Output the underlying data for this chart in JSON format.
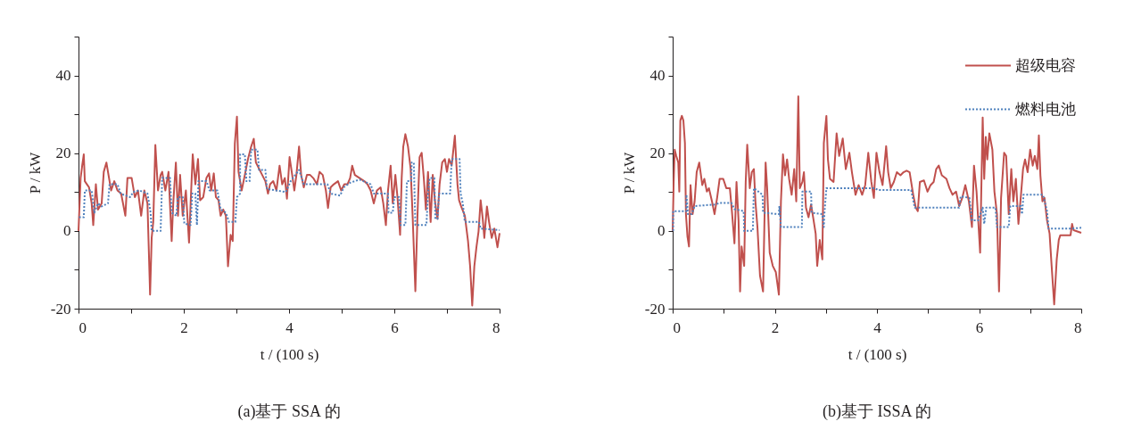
{
  "chart_data": [
    {
      "type": "line",
      "title": "(a)基于 SSA 的",
      "xlabel": "t / (100 s)",
      "ylabel": "P / kW",
      "xlim": [
        0,
        8
      ],
      "xticks": [
        0,
        {
          "value": 1,
          "label": null
        },
        2,
        {
          "value": 3,
          "label": null
        },
        4,
        {
          "value": 5,
          "label": null
        },
        6,
        {
          "value": 7,
          "label": null
        },
        8
      ],
      "ylim": [
        -20,
        50
      ],
      "yticks": [
        -20,
        {
          "value": -10,
          "label": null
        },
        0,
        {
          "value": 10,
          "label": null
        },
        20,
        {
          "value": 30,
          "label": null
        },
        40,
        {
          "value": 50,
          "label": null
        }
      ],
      "grid": false,
      "legend": false,
      "marker": "none",
      "series": [
        {
          "color": "#c0504d",
          "line_style": "solid",
          "x": [
            0,
            0.04,
            0.07,
            0.1,
            0.12,
            0.16,
            0.2,
            0.25,
            0.28,
            0.33,
            0.37,
            0.44,
            0.48,
            0.53,
            0.57,
            0.62,
            0.68,
            0.74,
            0.81,
            0.89,
            0.93,
            1.01,
            1.07,
            1.13,
            1.19,
            1.25,
            1.31,
            1.36,
            1.39,
            1.42,
            1.46,
            1.51,
            1.56,
            1.59,
            1.65,
            1.71,
            1.77,
            1.8,
            1.85,
            1.89,
            1.93,
            1.98,
            2.04,
            2.1,
            2.13,
            2.17,
            2.22,
            2.27,
            2.31,
            2.37,
            2.43,
            2.48,
            2.52,
            2.57,
            2.61,
            2.66,
            2.7,
            2.75,
            2.8,
            2.84,
            2.89,
            2.93,
            2.97,
            3.01,
            3.04,
            3.1,
            3.16,
            3.22,
            3.28,
            3.33,
            3.37,
            3.43,
            3.49,
            3.55,
            3.6,
            3.64,
            3.7,
            3.76,
            3.82,
            3.87,
            3.92,
            3.96,
            4.01,
            4.06,
            4.1,
            4.14,
            4.19,
            4.23,
            4.28,
            4.34,
            4.4,
            4.46,
            4.53,
            4.58,
            4.64,
            4.7,
            4.74,
            4.79,
            4.85,
            4.93,
            4.99,
            5.05,
            5.11,
            5.16,
            5.2,
            5.25,
            5.34,
            5.43,
            5.49,
            5.55,
            5.61,
            5.67,
            5.74,
            5.79,
            5.84,
            5.88,
            5.93,
            5.97,
            6.02,
            6.06,
            6.11,
            6.14,
            6.17,
            6.21,
            6.26,
            6.31,
            6.35,
            6.4,
            6.44,
            6.48,
            6.52,
            6.56,
            6.6,
            6.64,
            6.69,
            6.73,
            6.77,
            6.82,
            6.86,
            6.91,
            6.96,
            7,
            7.04,
            7.09,
            7.15,
            7.2,
            7.23,
            7.27,
            7.34,
            7.4,
            7.44,
            7.48,
            7.52,
            7.56,
            7.6,
            7.64,
            7.68,
            7.71,
            7.76,
            7.8,
            7.85,
            7.9,
            7.96,
            8
          ],
          "values": [
            0,
            13.6,
            16.8,
            19.7,
            12.8,
            12,
            11.2,
            7.1,
            1.5,
            12,
            5.5,
            7.1,
            15.2,
            17.6,
            14.4,
            10.4,
            12.8,
            10.4,
            9.6,
            3.9,
            13.6,
            13.6,
            8.7,
            10.4,
            3.9,
            10.4,
            7.1,
            -16.4,
            -1.8,
            2.3,
            22.1,
            10.4,
            14.4,
            15.2,
            10.4,
            15.2,
            -2.6,
            7.1,
            17.6,
            3.9,
            14.4,
            3.9,
            10.4,
            -3,
            7.1,
            19.7,
            12,
            18.5,
            7.9,
            8.7,
            13.6,
            14.8,
            10.4,
            14.8,
            8.7,
            7.9,
            3.9,
            5.5,
            3.9,
            -9.1,
            -1,
            -2.6,
            22.5,
            29.4,
            15.2,
            10.4,
            14.4,
            18.5,
            21.7,
            23.7,
            17.6,
            16,
            14.4,
            12.8,
            9.6,
            12,
            12.8,
            10.4,
            16.8,
            12,
            13.6,
            8.3,
            19,
            14.4,
            10.4,
            14.4,
            21.7,
            14.4,
            11.2,
            14.4,
            14.4,
            13.6,
            12,
            15.2,
            14.4,
            10.4,
            5.9,
            11.2,
            12,
            12.8,
            10.4,
            12,
            12,
            13.6,
            16.8,
            14.4,
            13.6,
            12.8,
            12,
            10.4,
            7.1,
            10.4,
            11.2,
            7.1,
            1.5,
            10.4,
            16.8,
            7.1,
            14.4,
            8.7,
            -1,
            13.6,
            21.7,
            24.9,
            21.7,
            16,
            3.1,
            -15.5,
            3.9,
            19,
            20.1,
            13.6,
            5.5,
            15.2,
            2.3,
            14.4,
            7.9,
            3.1,
            12,
            17.6,
            18.5,
            15.2,
            18.5,
            16.8,
            24.5,
            12,
            7.9,
            6.3,
            3.9,
            -2.6,
            -9.1,
            -19.2,
            -9.1,
            -4.2,
            -0.2,
            7.9,
            3.1,
            -1.8,
            6.3,
            2.3,
            -1.8,
            0.6,
            -4.2,
            -0.6
          ]
        },
        {
          "color": "#4f81bd",
          "line_style": "dotted",
          "x": [
            0.01,
            0.1,
            0.12,
            0.25,
            0.3,
            0.37,
            0.44,
            0.56,
            0.59,
            0.74,
            0.8,
            0.98,
            1.04,
            1.16,
            1.31,
            1.37,
            1.39,
            1.56,
            1.59,
            1.74,
            1.77,
            1.86,
            1.89,
            1.98,
            2.01,
            2.13,
            2.16,
            2.22,
            2.25,
            2.28,
            2.43,
            2.49,
            2.64,
            2.7,
            2.8,
            2.86,
            2.98,
            3.01,
            3.07,
            3.07,
            3.16,
            3.19,
            3.25,
            3.28,
            3.4,
            3.43,
            3.55,
            3.58,
            3.94,
            4.03,
            4.19,
            4.28,
            4.73,
            4.79,
            4.97,
            5.04,
            5.16,
            5.34,
            5.55,
            5.61,
            5.88,
            5.89,
            5.97,
            6,
            6.09,
            6.12,
            6.21,
            6.24,
            6.32,
            6.33,
            6.37,
            6.4,
            6.61,
            6.64,
            6.67,
            6.76,
            6.78,
            6.82,
            6.85,
            7.06,
            7.09,
            7.24,
            7.26,
            7.3,
            7.34,
            7.61,
            7.64,
            8
          ],
          "values": [
            3.5,
            3.5,
            10.4,
            10.4,
            4.7,
            7.1,
            6.3,
            7.1,
            12,
            12,
            9.6,
            8.7,
            10,
            10.4,
            9.6,
            4.7,
            0,
            0,
            13.6,
            13.6,
            4.7,
            3.9,
            8.7,
            8.7,
            1.9,
            1.5,
            9.6,
            9.6,
            1.5,
            12.8,
            12.8,
            10.4,
            10.4,
            5.5,
            4.7,
            2.3,
            2.3,
            8.7,
            9.6,
            19.7,
            19.7,
            12.8,
            12.8,
            20.9,
            20.9,
            15.7,
            15.7,
            10.8,
            10,
            12.8,
            15.7,
            12,
            12,
            9.6,
            9.1,
            11.2,
            12.4,
            13.2,
            12,
            9.6,
            9.6,
            4.7,
            4.7,
            8.7,
            8.7,
            1.5,
            1.5,
            12.8,
            12.8,
            17.6,
            17.6,
            1.5,
            1.5,
            9.6,
            13.6,
            13.6,
            3.1,
            3.1,
            9.6,
            9.6,
            18.5,
            18.5,
            9.6,
            7.1,
            2.3,
            2.3,
            0.6,
            0.2
          ]
        }
      ]
    },
    {
      "type": "line",
      "title": "(b)基于 ISSA 的",
      "xlabel": "t / (100 s)",
      "ylabel": "P / kW",
      "xlim": [
        0,
        8
      ],
      "xticks": [
        0,
        {
          "value": 1,
          "label": null
        },
        2,
        {
          "value": 3,
          "label": null
        },
        4,
        {
          "value": 5,
          "label": null
        },
        6,
        {
          "value": 7,
          "label": null
        },
        8
      ],
      "ylim": [
        -20,
        50
      ],
      "yticks": [
        -20,
        {
          "value": -10,
          "label": null
        },
        0,
        {
          "value": 10,
          "label": null
        },
        20,
        {
          "value": 30,
          "label": null
        },
        40,
        {
          "value": 50,
          "label": null
        }
      ],
      "grid": false,
      "legend": "top right",
      "marker": "none",
      "series": [
        {
          "name": "超级电容",
          "color": "#c0504d",
          "line_style": "solid",
          "x": [
            0,
            0.02,
            0.04,
            0.07,
            0.11,
            0.13,
            0.15,
            0.18,
            0.21,
            0.24,
            0.26,
            0.29,
            0.32,
            0.35,
            0.39,
            0.43,
            0.47,
            0.52,
            0.58,
            0.62,
            0.67,
            0.71,
            0.77,
            0.82,
            0.87,
            0.92,
            0.99,
            1.05,
            1.12,
            1.16,
            1.21,
            1.25,
            1.29,
            1.32,
            1.35,
            1.4,
            1.43,
            1.46,
            1.51,
            1.55,
            1.59,
            1.62,
            1.66,
            1.71,
            1.77,
            1.82,
            1.85,
            1.9,
            1.96,
            2.02,
            2.08,
            2.12,
            2.16,
            2.2,
            2.24,
            2.28,
            2.33,
            2.38,
            2.42,
            2.46,
            2.49,
            2.54,
            2.57,
            2.61,
            2.66,
            2.71,
            2.76,
            2.8,
            2.83,
            2.88,
            2.93,
            2.96,
            3.01,
            3.04,
            3.08,
            3.15,
            3.21,
            3.26,
            3.33,
            3.39,
            3.46,
            3.51,
            3.58,
            3.64,
            3.71,
            3.77,
            3.83,
            3.89,
            3.94,
            3.99,
            4.05,
            4.11,
            4.18,
            4.22,
            4.27,
            4.33,
            4.39,
            4.46,
            4.52,
            4.58,
            4.64,
            4.71,
            4.76,
            4.8,
            4.84,
            4.92,
            4.99,
            5.05,
            5.11,
            5.16,
            5.21,
            5.27,
            5.36,
            5.42,
            5.48,
            5.55,
            5.61,
            5.67,
            5.73,
            5.8,
            5.86,
            5.9,
            5.95,
            6.02,
            6.07,
            6.1,
            6.13,
            6.16,
            6.2,
            6.26,
            6.3,
            6.35,
            6.39,
            6.43,
            6.49,
            6.53,
            6.58,
            6.63,
            6.67,
            6.72,
            6.77,
            6.82,
            6.86,
            6.9,
            6.95,
            7,
            7.05,
            7.09,
            7.14,
            7.17,
            7.2,
            7.24,
            7.28,
            7.33,
            7.38,
            7.42,
            7.47,
            7.52,
            7.56,
            7.59,
            7.79,
            7.82,
            7.85,
            8
          ],
          "values": [
            0,
            12.6,
            20.9,
            19.3,
            17.6,
            10.1,
            28.4,
            29.6,
            28.4,
            22.6,
            4.3,
            -1.5,
            -4,
            11.8,
            4.3,
            7.6,
            15.1,
            17.6,
            11.8,
            13.4,
            10.1,
            11,
            7.6,
            4.3,
            8.5,
            13.4,
            13.4,
            11,
            11,
            5.1,
            -3.2,
            12.6,
            2.7,
            -15.6,
            -4,
            -9,
            12.6,
            22.2,
            11,
            15.1,
            15.9,
            7.6,
            1,
            -11.5,
            -15.6,
            17.6,
            11,
            -5.6,
            -9,
            -10.6,
            -16.4,
            7.6,
            19.7,
            14.3,
            18.4,
            13.4,
            9.3,
            15.9,
            7.6,
            34.6,
            11,
            12.6,
            15.1,
            6,
            3.5,
            6.8,
            2.7,
            -0.7,
            -9,
            -2.3,
            -7.3,
            22.6,
            29.6,
            18.4,
            13.4,
            12.6,
            25.1,
            19.3,
            23.8,
            15.9,
            20.1,
            15.1,
            9.3,
            11.8,
            9.3,
            11.8,
            20.1,
            12.6,
            8.5,
            20.1,
            15.1,
            11.8,
            21.8,
            15.1,
            11,
            12.6,
            15.1,
            14.3,
            15.1,
            15.5,
            15.1,
            9.3,
            6,
            5.1,
            12.6,
            13,
            10.1,
            11.8,
            12.6,
            15.9,
            16.8,
            14.3,
            13.4,
            11,
            9.3,
            10.1,
            6.4,
            8.5,
            11.8,
            7.6,
            1,
            16.8,
            10.1,
            -5.6,
            29.2,
            13.4,
            24.2,
            18.4,
            25.1,
            20.9,
            10.1,
            4.3,
            -15.6,
            8.5,
            20.1,
            19.3,
            4.3,
            15.9,
            7.6,
            13.4,
            1.8,
            9.3,
            15.9,
            18.4,
            15.1,
            20.9,
            16.8,
            19.3,
            15.9,
            24.6,
            14.3,
            7.6,
            8.5,
            2.7,
            -0.7,
            -9,
            -18.9,
            -7.3,
            -2.3,
            -1.1,
            -1.1,
            1.8,
            0.2,
            -0.5
          ]
        },
        {
          "name": "燃料电池",
          "color": "#4f81bd",
          "line_style": "dotted",
          "x": [
            0.01,
            0.01,
            0.27,
            0.27,
            0.3,
            0.37,
            0.43,
            0.83,
            0.93,
            1.15,
            1.21,
            1.39,
            1.4,
            1.57,
            1.59,
            1.68,
            1.76,
            1.77,
            2.08,
            2.09,
            2.12,
            2.53,
            2.54,
            2.71,
            2.72,
            2.93,
            2.96,
            2.97,
            3.01,
            3.96,
            4.02,
            4.67,
            4.74,
            5.61,
            5.64,
            5.81,
            5.86,
            5.98,
            6.07,
            6.1,
            6.14,
            6.32,
            6.35,
            6.58,
            6.61,
            6.82,
            6.84,
            6.87,
            7.25,
            7.33,
            7.36,
            7.82,
            8
          ],
          "values": [
            0,
            5.1,
            5.1,
            9.3,
            4.3,
            4.3,
            6.4,
            6.8,
            7.2,
            7.2,
            5.6,
            5.1,
            0,
            0,
            11,
            10.1,
            9.3,
            4.7,
            4.3,
            6.4,
            1,
            1,
            10.1,
            10.1,
            4.7,
            4.3,
            1,
            4.3,
            11,
            11,
            10.5,
            10.5,
            6,
            6,
            8.9,
            8.5,
            2.7,
            2.7,
            6,
            1.8,
            6,
            6,
            1,
            1,
            6.4,
            6.4,
            4.3,
            9.3,
            9.3,
            5.1,
            0.6,
            0.6,
            0.8
          ]
        }
      ]
    }
  ]
}
